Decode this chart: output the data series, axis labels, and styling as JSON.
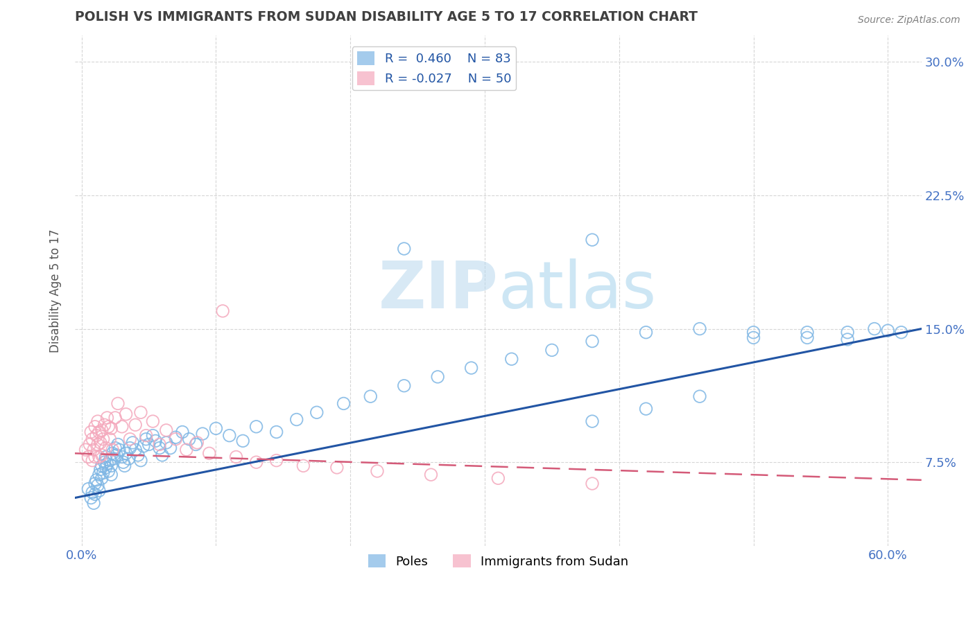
{
  "title": "POLISH VS IMMIGRANTS FROM SUDAN DISABILITY AGE 5 TO 17 CORRELATION CHART",
  "source": "Source: ZipAtlas.com",
  "ylabel": "Disability Age 5 to 17",
  "xlim": [
    -0.005,
    0.625
  ],
  "ylim": [
    0.028,
    0.315
  ],
  "xtick_positions": [
    0.0,
    0.1,
    0.2,
    0.3,
    0.4,
    0.5,
    0.6
  ],
  "xtick_labels": [
    "0.0%",
    "",
    "",
    "",
    "",
    "",
    "60.0%"
  ],
  "ytick_positions": [
    0.075,
    0.15,
    0.225,
    0.3
  ],
  "ytick_labels": [
    "7.5%",
    "15.0%",
    "22.5%",
    "30.0%"
  ],
  "legend_r1": "R =  0.460    N = 83",
  "legend_r2": "R = -0.027    N = 50",
  "blue_color": "#7eb6e4",
  "pink_color": "#f4a8bc",
  "line_blue": "#2255a4",
  "line_pink": "#d45a78",
  "watermark_text": "ZIPatlas",
  "watermark_color": "#d0e8f5",
  "grid_color": "#cccccc",
  "background_color": "#ffffff",
  "title_color": "#404040",
  "axis_label_color": "#555555",
  "tick_color": "#4472c4",
  "legend_text_color": "#2255a4",
  "source_color": "#808080",
  "poles_x": [
    0.005,
    0.007,
    0.008,
    0.009,
    0.01,
    0.01,
    0.011,
    0.012,
    0.013,
    0.013,
    0.014,
    0.015,
    0.015,
    0.016,
    0.017,
    0.018,
    0.018,
    0.019,
    0.02,
    0.021,
    0.022,
    0.022,
    0.023,
    0.024,
    0.025,
    0.026,
    0.027,
    0.028,
    0.03,
    0.031,
    0.032,
    0.033,
    0.035,
    0.036,
    0.038,
    0.04,
    0.042,
    0.044,
    0.046,
    0.048,
    0.05,
    0.053,
    0.055,
    0.058,
    0.06,
    0.063,
    0.066,
    0.07,
    0.075,
    0.08,
    0.085,
    0.09,
    0.1,
    0.11,
    0.12,
    0.13,
    0.145,
    0.16,
    0.175,
    0.195,
    0.215,
    0.24,
    0.265,
    0.29,
    0.32,
    0.35,
    0.38,
    0.42,
    0.46,
    0.5,
    0.54,
    0.57,
    0.6,
    0.38,
    0.42,
    0.46,
    0.5,
    0.54,
    0.57,
    0.59,
    0.61,
    0.38,
    0.24
  ],
  "poles_y": [
    0.06,
    0.055,
    0.058,
    0.052,
    0.063,
    0.057,
    0.065,
    0.062,
    0.068,
    0.059,
    0.071,
    0.066,
    0.073,
    0.069,
    0.075,
    0.072,
    0.078,
    0.074,
    0.07,
    0.076,
    0.068,
    0.073,
    0.08,
    0.077,
    0.083,
    0.079,
    0.085,
    0.082,
    0.078,
    0.075,
    0.073,
    0.08,
    0.077,
    0.083,
    0.086,
    0.082,
    0.079,
    0.076,
    0.084,
    0.088,
    0.085,
    0.09,
    0.087,
    0.083,
    0.079,
    0.086,
    0.083,
    0.089,
    0.092,
    0.088,
    0.085,
    0.091,
    0.094,
    0.09,
    0.087,
    0.095,
    0.092,
    0.099,
    0.103,
    0.108,
    0.112,
    0.118,
    0.123,
    0.128,
    0.133,
    0.138,
    0.143,
    0.148,
    0.15,
    0.148,
    0.145,
    0.148,
    0.149,
    0.098,
    0.105,
    0.112,
    0.145,
    0.148,
    0.144,
    0.15,
    0.148,
    0.2,
    0.195
  ],
  "sudan_x": [
    0.003,
    0.005,
    0.006,
    0.007,
    0.008,
    0.008,
    0.009,
    0.01,
    0.01,
    0.011,
    0.012,
    0.012,
    0.013,
    0.013,
    0.014,
    0.015,
    0.015,
    0.016,
    0.017,
    0.018,
    0.019,
    0.02,
    0.021,
    0.022,
    0.023,
    0.025,
    0.027,
    0.03,
    0.033,
    0.036,
    0.04,
    0.044,
    0.048,
    0.053,
    0.058,
    0.063,
    0.07,
    0.078,
    0.086,
    0.095,
    0.105,
    0.115,
    0.13,
    0.145,
    0.165,
    0.19,
    0.22,
    0.26,
    0.31,
    0.38
  ],
  "sudan_y": [
    0.082,
    0.078,
    0.085,
    0.092,
    0.076,
    0.088,
    0.082,
    0.095,
    0.078,
    0.09,
    0.085,
    0.098,
    0.092,
    0.078,
    0.086,
    0.093,
    0.079,
    0.088,
    0.096,
    0.083,
    0.1,
    0.095,
    0.088,
    0.094,
    0.082,
    0.1,
    0.108,
    0.095,
    0.102,
    0.088,
    0.096,
    0.103,
    0.09,
    0.098,
    0.085,
    0.093,
    0.088,
    0.082,
    0.086,
    0.08,
    0.16,
    0.078,
    0.075,
    0.076,
    0.073,
    0.072,
    0.07,
    0.068,
    0.066,
    0.063
  ]
}
